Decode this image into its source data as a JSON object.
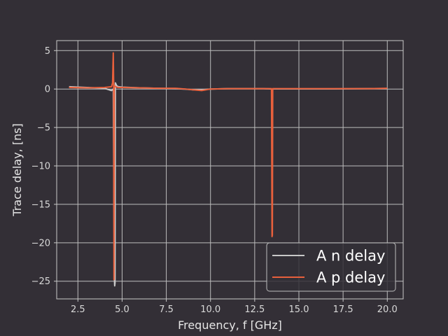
{
  "chart_data": {
    "type": "line",
    "title": "",
    "xlabel": "Frequency, f [GHz]",
    "ylabel": "Trace delay, [ns]",
    "xlim": [
      1.3,
      20.9
    ],
    "ylim": [
      -27.3,
      6.3
    ],
    "xticks": [
      2.5,
      5.0,
      7.5,
      10.0,
      12.5,
      15.0,
      17.5,
      20.0
    ],
    "xtick_labels": [
      "2.5",
      "5.0",
      "7.5",
      "10.0",
      "12.5",
      "15.0",
      "17.5",
      "20.0"
    ],
    "yticks": [
      5,
      0,
      -5,
      -10,
      -15,
      -20,
      -25
    ],
    "ytick_labels": [
      "5",
      "0",
      "−5",
      "−10",
      "−15",
      "−20",
      "−25"
    ],
    "grid": true,
    "legend_position": "lower-right",
    "background": "#332f36",
    "axis_color": "#c8c8c8",
    "grid_color": "#bdbdbd",
    "series": [
      {
        "name": "A n delay",
        "color": "#c8c8c8",
        "x": [
          2.0,
          3.0,
          4.0,
          4.4,
          4.5,
          4.56,
          4.58,
          4.6,
          4.62,
          4.66,
          4.7,
          4.8,
          5.0,
          6.0,
          7.0,
          8.0,
          8.5,
          9.0,
          9.5,
          10.0,
          11.0,
          12.0,
          13.0,
          13.4,
          13.5,
          13.6,
          15.0,
          17.0,
          19.0,
          20.0
        ],
        "y": [
          0.3,
          0.2,
          0.1,
          -0.2,
          0.0,
          -24.5,
          -25.6,
          -25.2,
          0.8,
          0.6,
          0.4,
          0.3,
          0.25,
          0.15,
          0.1,
          0.05,
          0.0,
          -0.1,
          -0.1,
          0.0,
          0.05,
          0.05,
          0.05,
          0.02,
          0.0,
          0.02,
          0.02,
          0.02,
          0.05,
          0.05
        ]
      },
      {
        "name": "A p delay",
        "color": "#e8603c",
        "x": [
          2.0,
          3.0,
          4.0,
          4.4,
          4.46,
          4.5,
          4.52,
          4.54,
          4.56,
          4.6,
          4.7,
          4.8,
          5.0,
          6.0,
          7.0,
          8.0,
          8.6,
          9.0,
          9.5,
          10.0,
          11.0,
          12.0,
          13.0,
          13.45,
          13.48,
          13.5,
          13.52,
          13.55,
          14.0,
          15.0,
          17.0,
          19.0,
          20.0
        ],
        "y": [
          0.2,
          0.15,
          0.2,
          0.3,
          0.8,
          4.7,
          1.0,
          -24.8,
          0.5,
          0.35,
          0.25,
          0.2,
          0.2,
          0.15,
          0.1,
          0.1,
          0.0,
          -0.1,
          -0.2,
          0.0,
          0.05,
          0.05,
          0.05,
          0.05,
          -19.2,
          -19.0,
          0.05,
          0.05,
          0.05,
          0.05,
          0.05,
          0.05,
          0.1
        ]
      }
    ]
  }
}
